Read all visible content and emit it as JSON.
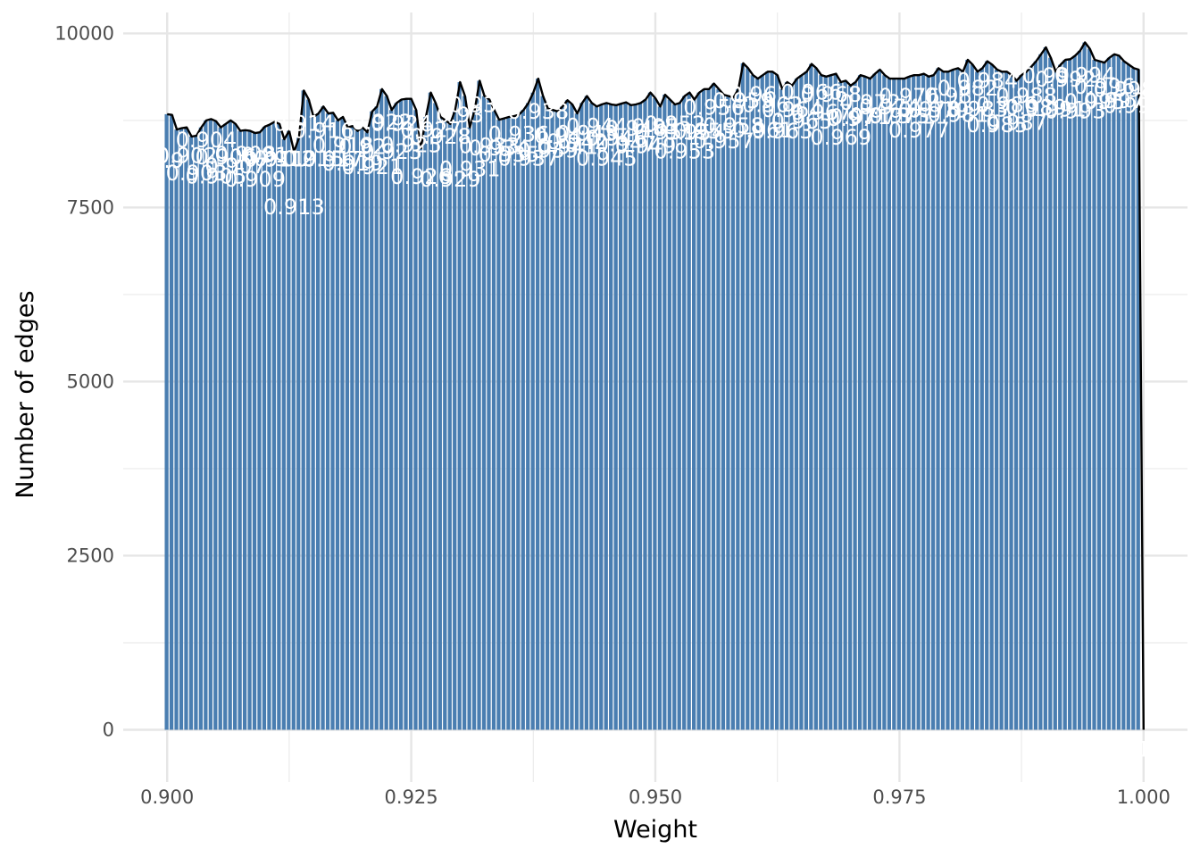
{
  "chart_data": {
    "type": "bar",
    "xlabel": "Weight",
    "ylabel": "Number of edges",
    "xlim": [
      0.8955,
      1.0045
    ],
    "ylim": [
      -750,
      10300
    ],
    "x_ticks": [
      "0.900",
      "0.925",
      "0.950",
      "0.975",
      "1.000"
    ],
    "y_ticks": [
      "0",
      "2500",
      "5000",
      "7500",
      "10000"
    ],
    "grid": true,
    "bin_width": 0.0005,
    "bar_color": "#4a7eb1",
    "line_color": "#000000",
    "bars": [
      {
        "x": 0.9,
        "y": 8840,
        "label": "0.9"
      },
      {
        "x": 0.9005,
        "y": 8830,
        "label": ""
      },
      {
        "x": 0.901,
        "y": 8620,
        "label": ""
      },
      {
        "x": 0.9015,
        "y": 8640,
        "label": ""
      },
      {
        "x": 0.902,
        "y": 8650,
        "label": "0.902"
      },
      {
        "x": 0.9025,
        "y": 8520,
        "label": ""
      },
      {
        "x": 0.903,
        "y": 8530,
        "label": "0.903"
      },
      {
        "x": 0.9035,
        "y": 8650,
        "label": ""
      },
      {
        "x": 0.904,
        "y": 8750,
        "label": "0.904"
      },
      {
        "x": 0.9045,
        "y": 8770,
        "label": ""
      },
      {
        "x": 0.905,
        "y": 8740,
        "label": "0.905"
      },
      {
        "x": 0.9055,
        "y": 8650,
        "label": ""
      },
      {
        "x": 0.906,
        "y": 8700,
        "label": "0.906"
      },
      {
        "x": 0.9065,
        "y": 8750,
        "label": ""
      },
      {
        "x": 0.907,
        "y": 8700,
        "label": "0.907"
      },
      {
        "x": 0.9075,
        "y": 8600,
        "label": ""
      },
      {
        "x": 0.908,
        "y": 8610,
        "label": "0.908"
      },
      {
        "x": 0.9085,
        "y": 8600,
        "label": ""
      },
      {
        "x": 0.909,
        "y": 8570,
        "label": "0.909"
      },
      {
        "x": 0.9095,
        "y": 8580,
        "label": ""
      },
      {
        "x": 0.91,
        "y": 8660,
        "label": "0.91"
      },
      {
        "x": 0.9105,
        "y": 8690,
        "label": ""
      },
      {
        "x": 0.911,
        "y": 8730,
        "label": "0.911"
      },
      {
        "x": 0.9115,
        "y": 8700,
        "label": ""
      },
      {
        "x": 0.912,
        "y": 8480,
        "label": "0.912"
      },
      {
        "x": 0.9125,
        "y": 8600,
        "label": ""
      },
      {
        "x": 0.913,
        "y": 8300,
        "label": "0.913"
      },
      {
        "x": 0.9135,
        "y": 8500,
        "label": ""
      },
      {
        "x": 0.914,
        "y": 9180,
        "label": "0.914"
      },
      {
        "x": 0.9145,
        "y": 9050,
        "label": ""
      },
      {
        "x": 0.915,
        "y": 8800,
        "label": "0.915"
      },
      {
        "x": 0.9155,
        "y": 8850,
        "label": ""
      },
      {
        "x": 0.916,
        "y": 8950,
        "label": "0.916"
      },
      {
        "x": 0.9165,
        "y": 8850,
        "label": ""
      },
      {
        "x": 0.917,
        "y": 8860,
        "label": "0.917"
      },
      {
        "x": 0.9175,
        "y": 8750,
        "label": ""
      },
      {
        "x": 0.918,
        "y": 8800,
        "label": "0.918"
      },
      {
        "x": 0.9185,
        "y": 8650,
        "label": ""
      },
      {
        "x": 0.919,
        "y": 8670,
        "label": "0.919"
      },
      {
        "x": 0.9195,
        "y": 8600,
        "label": ""
      },
      {
        "x": 0.92,
        "y": 8650,
        "label": "0.92"
      },
      {
        "x": 0.9205,
        "y": 8580,
        "label": ""
      },
      {
        "x": 0.921,
        "y": 8880,
        "label": "0.921"
      },
      {
        "x": 0.9215,
        "y": 8950,
        "label": ""
      },
      {
        "x": 0.922,
        "y": 9200,
        "label": "0.922"
      },
      {
        "x": 0.9225,
        "y": 9100,
        "label": ""
      },
      {
        "x": 0.923,
        "y": 8900,
        "label": "0.923"
      },
      {
        "x": 0.9235,
        "y": 9000,
        "label": ""
      },
      {
        "x": 0.924,
        "y": 9050,
        "label": "0.924"
      },
      {
        "x": 0.9245,
        "y": 9060,
        "label": ""
      },
      {
        "x": 0.925,
        "y": 9060,
        "label": "0.925"
      },
      {
        "x": 0.9255,
        "y": 8900,
        "label": ""
      },
      {
        "x": 0.926,
        "y": 8350,
        "label": "0.926"
      },
      {
        "x": 0.9265,
        "y": 8800,
        "label": ""
      },
      {
        "x": 0.927,
        "y": 9150,
        "label": "0.927"
      },
      {
        "x": 0.9275,
        "y": 9000,
        "label": ""
      },
      {
        "x": 0.928,
        "y": 8800,
        "label": "0.928"
      },
      {
        "x": 0.9285,
        "y": 8750,
        "label": ""
      },
      {
        "x": 0.929,
        "y": 8700,
        "label": "0.929"
      },
      {
        "x": 0.9295,
        "y": 8900,
        "label": ""
      },
      {
        "x": 0.93,
        "y": 9300,
        "label": "0.93"
      },
      {
        "x": 0.9305,
        "y": 9100,
        "label": ""
      },
      {
        "x": 0.931,
        "y": 8650,
        "label": "0.931"
      },
      {
        "x": 0.9315,
        "y": 8900,
        "label": ""
      },
      {
        "x": 0.932,
        "y": 9320,
        "label": "0.932"
      },
      {
        "x": 0.9325,
        "y": 9100,
        "label": ""
      },
      {
        "x": 0.933,
        "y": 9050,
        "label": "0.933"
      },
      {
        "x": 0.9335,
        "y": 8900,
        "label": ""
      },
      {
        "x": 0.934,
        "y": 8760,
        "label": "0.934"
      },
      {
        "x": 0.9345,
        "y": 8780,
        "label": ""
      },
      {
        "x": 0.935,
        "y": 8800,
        "label": "0.935"
      },
      {
        "x": 0.9355,
        "y": 8810,
        "label": ""
      },
      {
        "x": 0.936,
        "y": 8830,
        "label": "0.936"
      },
      {
        "x": 0.9365,
        "y": 8900,
        "label": ""
      },
      {
        "x": 0.937,
        "y": 9000,
        "label": "0.937"
      },
      {
        "x": 0.9375,
        "y": 9150,
        "label": ""
      },
      {
        "x": 0.938,
        "y": 9350,
        "label": "0.938"
      },
      {
        "x": 0.9385,
        "y": 9100,
        "label": ""
      },
      {
        "x": 0.939,
        "y": 8920,
        "label": "0.939"
      },
      {
        "x": 0.9395,
        "y": 8900,
        "label": ""
      },
      {
        "x": 0.94,
        "y": 8880,
        "label": "0.94"
      },
      {
        "x": 0.9405,
        "y": 8950,
        "label": ""
      },
      {
        "x": 0.941,
        "y": 9040,
        "label": "0.941"
      },
      {
        "x": 0.9415,
        "y": 8980,
        "label": ""
      },
      {
        "x": 0.942,
        "y": 8850,
        "label": "0.942"
      },
      {
        "x": 0.9425,
        "y": 9000,
        "label": ""
      },
      {
        "x": 0.943,
        "y": 9100,
        "label": "0.943"
      },
      {
        "x": 0.9435,
        "y": 9000,
        "label": ""
      },
      {
        "x": 0.944,
        "y": 8950,
        "label": "0.944"
      },
      {
        "x": 0.9445,
        "y": 8980,
        "label": ""
      },
      {
        "x": 0.945,
        "y": 9000,
        "label": "0.945"
      },
      {
        "x": 0.9455,
        "y": 8980,
        "label": ""
      },
      {
        "x": 0.946,
        "y": 8970,
        "label": "0.946"
      },
      {
        "x": 0.9465,
        "y": 8990,
        "label": ""
      },
      {
        "x": 0.947,
        "y": 9010,
        "label": "0.947"
      },
      {
        "x": 0.9475,
        "y": 8970,
        "label": ""
      },
      {
        "x": 0.948,
        "y": 8980,
        "label": "0.948"
      },
      {
        "x": 0.9485,
        "y": 9000,
        "label": ""
      },
      {
        "x": 0.949,
        "y": 9050,
        "label": "0.949"
      },
      {
        "x": 0.9495,
        "y": 9150,
        "label": ""
      },
      {
        "x": 0.95,
        "y": 9070,
        "label": "0.95"
      },
      {
        "x": 0.9505,
        "y": 8950,
        "label": ""
      },
      {
        "x": 0.951,
        "y": 9120,
        "label": "0.951"
      },
      {
        "x": 0.9515,
        "y": 9050,
        "label": ""
      },
      {
        "x": 0.952,
        "y": 8980,
        "label": "0.952"
      },
      {
        "x": 0.9525,
        "y": 9000,
        "label": ""
      },
      {
        "x": 0.953,
        "y": 9100,
        "label": "0.953"
      },
      {
        "x": 0.9535,
        "y": 9150,
        "label": ""
      },
      {
        "x": 0.954,
        "y": 9050,
        "label": "0.954"
      },
      {
        "x": 0.9545,
        "y": 9150,
        "label": ""
      },
      {
        "x": 0.955,
        "y": 9200,
        "label": "0.955"
      },
      {
        "x": 0.9555,
        "y": 9200,
        "label": ""
      },
      {
        "x": 0.956,
        "y": 9280,
        "label": "0.956"
      },
      {
        "x": 0.9565,
        "y": 9200,
        "label": ""
      },
      {
        "x": 0.957,
        "y": 9120,
        "label": "0.957"
      },
      {
        "x": 0.9575,
        "y": 9100,
        "label": ""
      },
      {
        "x": 0.958,
        "y": 9080,
        "label": "0.958"
      },
      {
        "x": 0.9585,
        "y": 9200,
        "label": ""
      },
      {
        "x": 0.959,
        "y": 9570,
        "label": "0.959"
      },
      {
        "x": 0.9595,
        "y": 9500,
        "label": ""
      },
      {
        "x": 0.96,
        "y": 9400,
        "label": "0.96"
      },
      {
        "x": 0.9605,
        "y": 9350,
        "label": ""
      },
      {
        "x": 0.961,
        "y": 9400,
        "label": "0.961"
      },
      {
        "x": 0.9615,
        "y": 9450,
        "label": ""
      },
      {
        "x": 0.962,
        "y": 9450,
        "label": "0.962"
      },
      {
        "x": 0.9625,
        "y": 9400,
        "label": ""
      },
      {
        "x": 0.963,
        "y": 9200,
        "label": "0.963"
      },
      {
        "x": 0.9635,
        "y": 9300,
        "label": ""
      },
      {
        "x": 0.964,
        "y": 9250,
        "label": "0.964"
      },
      {
        "x": 0.9645,
        "y": 9350,
        "label": ""
      },
      {
        "x": 0.965,
        "y": 9400,
        "label": "0.965"
      },
      {
        "x": 0.9655,
        "y": 9450,
        "label": ""
      },
      {
        "x": 0.966,
        "y": 9560,
        "label": "0.966"
      },
      {
        "x": 0.9665,
        "y": 9500,
        "label": ""
      },
      {
        "x": 0.967,
        "y": 9400,
        "label": "0.967"
      },
      {
        "x": 0.9675,
        "y": 9380,
        "label": ""
      },
      {
        "x": 0.968,
        "y": 9400,
        "label": "0.968"
      },
      {
        "x": 0.9685,
        "y": 9420,
        "label": ""
      },
      {
        "x": 0.969,
        "y": 9300,
        "label": "0.969"
      },
      {
        "x": 0.9695,
        "y": 9320,
        "label": ""
      },
      {
        "x": 0.97,
        "y": 9250,
        "label": "0.97"
      },
      {
        "x": 0.9705,
        "y": 9300,
        "label": ""
      },
      {
        "x": 0.971,
        "y": 9400,
        "label": "0.971"
      },
      {
        "x": 0.9715,
        "y": 9380,
        "label": ""
      },
      {
        "x": 0.972,
        "y": 9350,
        "label": "0.972"
      },
      {
        "x": 0.9725,
        "y": 9420,
        "label": ""
      },
      {
        "x": 0.973,
        "y": 9480,
        "label": "0.973"
      },
      {
        "x": 0.9735,
        "y": 9400,
        "label": ""
      },
      {
        "x": 0.974,
        "y": 9350,
        "label": "0.974"
      },
      {
        "x": 0.9745,
        "y": 9350,
        "label": ""
      },
      {
        "x": 0.975,
        "y": 9350,
        "label": "0.975"
      },
      {
        "x": 0.9755,
        "y": 9350,
        "label": ""
      },
      {
        "x": 0.976,
        "y": 9380,
        "label": "0.976"
      },
      {
        "x": 0.9765,
        "y": 9400,
        "label": ""
      },
      {
        "x": 0.977,
        "y": 9400,
        "label": "0.977"
      },
      {
        "x": 0.9775,
        "y": 9420,
        "label": ""
      },
      {
        "x": 0.978,
        "y": 9380,
        "label": "0.978"
      },
      {
        "x": 0.9785,
        "y": 9400,
        "label": ""
      },
      {
        "x": 0.979,
        "y": 9500,
        "label": "0.979"
      },
      {
        "x": 0.9795,
        "y": 9450,
        "label": ""
      },
      {
        "x": 0.98,
        "y": 9450,
        "label": "0.98"
      },
      {
        "x": 0.9805,
        "y": 9480,
        "label": ""
      },
      {
        "x": 0.981,
        "y": 9500,
        "label": "0.981"
      },
      {
        "x": 0.9815,
        "y": 9450,
        "label": ""
      },
      {
        "x": 0.982,
        "y": 9620,
        "label": "0.982"
      },
      {
        "x": 0.9825,
        "y": 9550,
        "label": ""
      },
      {
        "x": 0.983,
        "y": 9450,
        "label": "0.983"
      },
      {
        "x": 0.9835,
        "y": 9500,
        "label": ""
      },
      {
        "x": 0.984,
        "y": 9600,
        "label": "0.984"
      },
      {
        "x": 0.9845,
        "y": 9550,
        "label": ""
      },
      {
        "x": 0.985,
        "y": 9480,
        "label": "0.985"
      },
      {
        "x": 0.9855,
        "y": 9450,
        "label": ""
      },
      {
        "x": 0.986,
        "y": 9450,
        "label": "0.986"
      },
      {
        "x": 0.9865,
        "y": 9400,
        "label": ""
      },
      {
        "x": 0.987,
        "y": 9320,
        "label": "0.987"
      },
      {
        "x": 0.9875,
        "y": 9400,
        "label": ""
      },
      {
        "x": 0.988,
        "y": 9450,
        "label": "0.988"
      },
      {
        "x": 0.9885,
        "y": 9520,
        "label": ""
      },
      {
        "x": 0.989,
        "y": 9600,
        "label": "0.989"
      },
      {
        "x": 0.9895,
        "y": 9700,
        "label": ""
      },
      {
        "x": 0.99,
        "y": 9800,
        "label": "0.99"
      },
      {
        "x": 0.9905,
        "y": 9650,
        "label": ""
      },
      {
        "x": 0.991,
        "y": 9450,
        "label": "0.991"
      },
      {
        "x": 0.9915,
        "y": 9550,
        "label": ""
      },
      {
        "x": 0.992,
        "y": 9620,
        "label": "0.992"
      },
      {
        "x": 0.9925,
        "y": 9630,
        "label": ""
      },
      {
        "x": 0.993,
        "y": 9680,
        "label": "0.993"
      },
      {
        "x": 0.9935,
        "y": 9750,
        "label": ""
      },
      {
        "x": 0.994,
        "y": 9870,
        "label": "0.994"
      },
      {
        "x": 0.9945,
        "y": 9780,
        "label": ""
      },
      {
        "x": 0.995,
        "y": 9620,
        "label": "0.995"
      },
      {
        "x": 0.9955,
        "y": 9600,
        "label": ""
      },
      {
        "x": 0.996,
        "y": 9580,
        "label": "0.996"
      },
      {
        "x": 0.9965,
        "y": 9650,
        "label": ""
      },
      {
        "x": 0.997,
        "y": 9700,
        "label": "0.997"
      },
      {
        "x": 0.9975,
        "y": 9680,
        "label": ""
      },
      {
        "x": 0.998,
        "y": 9600,
        "label": "0.998"
      },
      {
        "x": 0.9985,
        "y": 9550,
        "label": ""
      },
      {
        "x": 0.999,
        "y": 9500,
        "label": "0.999"
      },
      {
        "x": 0.9995,
        "y": 9480,
        "label": ""
      },
      {
        "x": 1.0,
        "y": 0,
        "label": "1"
      }
    ]
  }
}
